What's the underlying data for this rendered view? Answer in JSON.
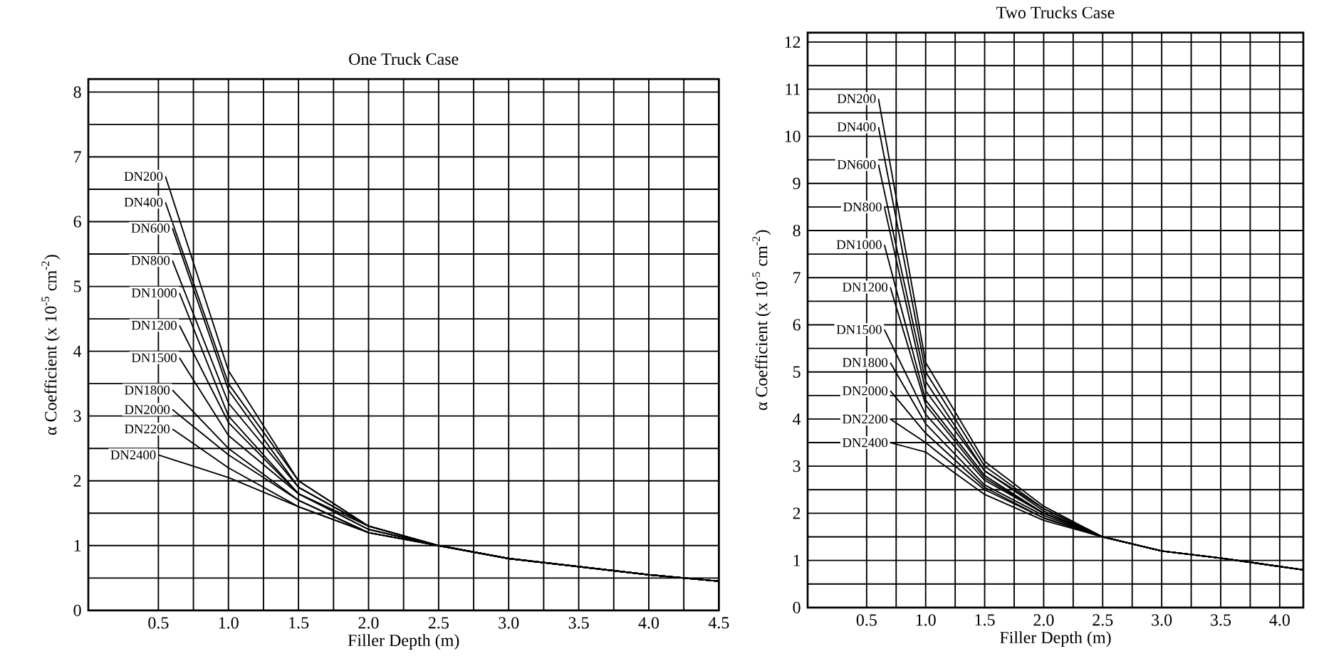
{
  "chart_data": [
    {
      "type": "line",
      "title": "One Truck Case",
      "xlabel": "Filler Depth (m)",
      "ylabel": "α Coefficient (x 10$^{-5}$ cm$^{-2}$)",
      "xlim": [
        0,
        4.5
      ],
      "ylim": [
        0,
        8.2
      ],
      "grid": true,
      "xticks": [
        {
          "value": 0.5,
          "label": "0.5"
        },
        {
          "value": 1,
          "label": "1.0"
        },
        {
          "value": 1.5,
          "label": "1.5"
        },
        {
          "value": 2,
          "label": "2.0"
        },
        {
          "value": 2.5,
          "label": "2.5"
        },
        {
          "value": 3,
          "label": "3.0"
        },
        {
          "value": 3.5,
          "label": "3.5"
        },
        {
          "value": 4,
          "label": "4.0"
        },
        {
          "value": 4.5,
          "label": "4.5"
        }
      ],
      "yticks": [
        0,
        1,
        2,
        3,
        4,
        5,
        6,
        7,
        8
      ],
      "series": [
        {
          "name": "DN200",
          "color": "#000000",
          "x": [
            0.55,
            1.0,
            1.5,
            2.0,
            2.5,
            3.0,
            4.0,
            4.5
          ],
          "values": [
            6.7,
            3.7,
            2.0,
            1.3,
            1.0,
            0.8,
            0.55,
            0.45
          ]
        },
        {
          "name": "DN400",
          "color": "#000000",
          "x": [
            0.55,
            1.0,
            1.5,
            2.0,
            2.5,
            3.0,
            4.0,
            4.5
          ],
          "values": [
            6.3,
            3.5,
            2.0,
            1.3,
            1.0,
            0.8,
            0.55,
            0.45
          ]
        },
        {
          "name": "DN600",
          "color": "#000000",
          "x": [
            0.6,
            1.0,
            1.5,
            2.0,
            2.5,
            3.0,
            4.0,
            4.5
          ],
          "values": [
            5.9,
            3.4,
            1.9,
            1.3,
            1.0,
            0.8,
            0.55,
            0.45
          ]
        },
        {
          "name": "DN800",
          "color": "#000000",
          "x": [
            0.6,
            1.0,
            1.5,
            2.0,
            2.5,
            3.0,
            4.0,
            4.5
          ],
          "values": [
            5.4,
            3.2,
            1.9,
            1.3,
            1.0,
            0.8,
            0.55,
            0.45
          ]
        },
        {
          "name": "DN1000",
          "color": "#000000",
          "x": [
            0.65,
            1.0,
            1.5,
            2.0,
            2.5,
            3.0,
            4.0,
            4.5
          ],
          "values": [
            4.9,
            3.0,
            1.8,
            1.3,
            1.0,
            0.8,
            0.55,
            0.45
          ]
        },
        {
          "name": "DN1200",
          "color": "#000000",
          "x": [
            0.65,
            1.0,
            1.5,
            2.0,
            2.5,
            3.0,
            4.0,
            4.5
          ],
          "values": [
            4.4,
            2.9,
            1.8,
            1.25,
            1.0,
            0.8,
            0.55,
            0.45
          ]
        },
        {
          "name": "DN1500",
          "color": "#000000",
          "x": [
            0.65,
            1.0,
            1.5,
            2.0,
            2.5,
            3.0,
            4.0,
            4.5
          ],
          "values": [
            3.9,
            2.7,
            1.8,
            1.25,
            1.0,
            0.8,
            0.55,
            0.45
          ]
        },
        {
          "name": "DN1800",
          "color": "#000000",
          "x": [
            0.6,
            1.0,
            1.5,
            2.0,
            2.5,
            3.0,
            4.0,
            4.5
          ],
          "values": [
            3.4,
            2.5,
            1.7,
            1.2,
            1.0,
            0.8,
            0.55,
            0.45
          ]
        },
        {
          "name": "DN2000",
          "color": "#000000",
          "x": [
            0.6,
            1.0,
            1.5,
            2.0,
            2.5,
            3.0,
            4.0,
            4.5
          ],
          "values": [
            3.1,
            2.4,
            1.7,
            1.2,
            1.0,
            0.8,
            0.55,
            0.45
          ]
        },
        {
          "name": "DN2200",
          "color": "#000000",
          "x": [
            0.6,
            1.0,
            1.5,
            2.0,
            2.5,
            3.0,
            4.0,
            4.5
          ],
          "values": [
            2.8,
            2.2,
            1.6,
            1.2,
            1.0,
            0.8,
            0.55,
            0.45
          ]
        },
        {
          "name": "DN2400",
          "color": "#000000",
          "x": [
            0.5,
            1.0,
            1.5,
            2.0,
            2.5,
            3.0,
            4.0,
            4.5
          ],
          "values": [
            2.4,
            2.05,
            1.6,
            1.2,
            1.0,
            0.8,
            0.55,
            0.45
          ]
        }
      ]
    },
    {
      "type": "line",
      "title": "Two Trucks Case",
      "xlabel": "Filler Depth (m)",
      "ylabel": "α Coefficient (x 10$^{-5}$ cm$^{-2}$)",
      "xlim": [
        0,
        4.2
      ],
      "ylim": [
        0,
        12.2
      ],
      "grid": true,
      "xticks": [
        {
          "value": 0.5,
          "label": "0.5"
        },
        {
          "value": 1,
          "label": "1.0"
        },
        {
          "value": 1.5,
          "label": "1.5"
        },
        {
          "value": 2,
          "label": "2.0"
        },
        {
          "value": 2.5,
          "label": "2.5"
        },
        {
          "value": 3,
          "label": "3.0"
        },
        {
          "value": 3.5,
          "label": "3.5"
        },
        {
          "value": 4,
          "label": "4.0"
        }
      ],
      "yticks": [
        0,
        1,
        2,
        3,
        4,
        5,
        6,
        7,
        8,
        9,
        10,
        11,
        12
      ],
      "series": [
        {
          "name": "DN200",
          "color": "#000000",
          "x": [
            0.6,
            1.0,
            1.5,
            2.0,
            2.5,
            3.0,
            3.5,
            4.2
          ],
          "values": [
            10.8,
            5.2,
            3.1,
            2.15,
            1.5,
            1.2,
            1.05,
            0.8
          ]
        },
        {
          "name": "DN400",
          "color": "#000000",
          "x": [
            0.6,
            1.0,
            1.5,
            2.0,
            2.5,
            3.0,
            3.5,
            4.2
          ],
          "values": [
            10.2,
            5.0,
            3.0,
            2.1,
            1.5,
            1.2,
            1.05,
            0.8
          ]
        },
        {
          "name": "DN600",
          "color": "#000000",
          "x": [
            0.6,
            1.0,
            1.5,
            2.0,
            2.5,
            3.0,
            3.5,
            4.2
          ],
          "values": [
            9.4,
            4.8,
            2.9,
            2.1,
            1.5,
            1.2,
            1.05,
            0.8
          ]
        },
        {
          "name": "DN800",
          "color": "#000000",
          "x": [
            0.65,
            1.0,
            1.5,
            2.0,
            2.5,
            3.0,
            3.5,
            4.2
          ],
          "values": [
            8.5,
            4.6,
            2.9,
            2.05,
            1.5,
            1.2,
            1.05,
            0.8
          ]
        },
        {
          "name": "DN1000",
          "color": "#000000",
          "x": [
            0.65,
            1.0,
            1.5,
            2.0,
            2.5,
            3.0,
            3.5,
            4.2
          ],
          "values": [
            7.7,
            4.4,
            2.8,
            2.0,
            1.5,
            1.2,
            1.05,
            0.8
          ]
        },
        {
          "name": "DN1200",
          "color": "#000000",
          "x": [
            0.7,
            1.0,
            1.5,
            2.0,
            2.5,
            3.0,
            3.5,
            4.2
          ],
          "values": [
            6.8,
            4.3,
            2.75,
            2.0,
            1.5,
            1.2,
            1.05,
            0.8
          ]
        },
        {
          "name": "DN1500",
          "color": "#000000",
          "x": [
            0.65,
            1.0,
            1.5,
            2.0,
            2.5,
            3.0,
            3.5,
            4.2
          ],
          "values": [
            5.9,
            4.1,
            2.7,
            2.0,
            1.5,
            1.2,
            1.05,
            0.8
          ]
        },
        {
          "name": "DN1800",
          "color": "#000000",
          "x": [
            0.7,
            1.0,
            1.5,
            2.0,
            2.5,
            3.0,
            3.5,
            4.2
          ],
          "values": [
            5.2,
            3.9,
            2.6,
            1.95,
            1.5,
            1.2,
            1.05,
            0.8
          ]
        },
        {
          "name": "DN2000",
          "color": "#000000",
          "x": [
            0.7,
            1.0,
            1.5,
            2.0,
            2.5,
            3.0,
            3.5,
            4.2
          ],
          "values": [
            4.6,
            3.7,
            2.55,
            1.9,
            1.5,
            1.2,
            1.05,
            0.8
          ]
        },
        {
          "name": "DN2200",
          "color": "#000000",
          "x": [
            0.7,
            1.0,
            1.5,
            2.0,
            2.5,
            3.0,
            3.5,
            4.2
          ],
          "values": [
            4.0,
            3.5,
            2.5,
            1.9,
            1.5,
            1.2,
            1.05,
            0.8
          ]
        },
        {
          "name": "DN2400",
          "color": "#000000",
          "x": [
            0.7,
            1.0,
            1.5,
            2.0,
            2.5,
            3.0,
            3.5,
            4.2
          ],
          "values": [
            3.5,
            3.3,
            2.4,
            1.85,
            1.5,
            1.2,
            1.05,
            0.8
          ]
        }
      ]
    }
  ]
}
